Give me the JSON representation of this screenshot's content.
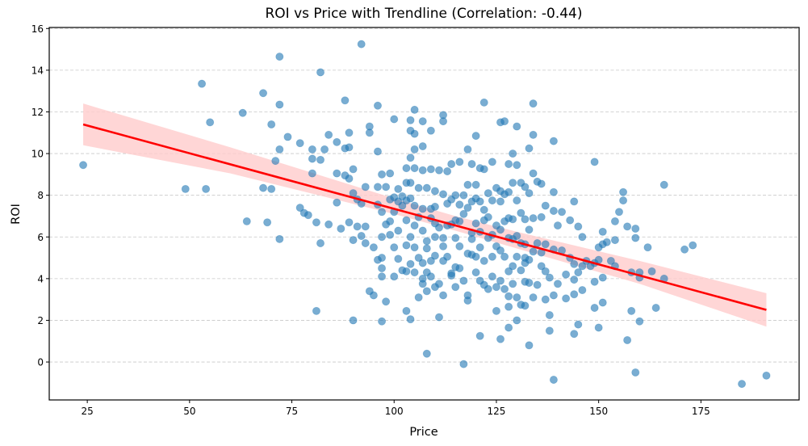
{
  "chart_data": {
    "type": "scatter",
    "title": "ROI vs Price with Trendline (Correlation: -0.44)",
    "xlabel": "Price",
    "ylabel": "ROI",
    "xlim": [
      15.7,
      199.0
    ],
    "ylim": [
      -1.82,
      16.05
    ],
    "xticks": [
      25,
      50,
      75,
      100,
      125,
      150,
      175
    ],
    "yticks": [
      0,
      2,
      4,
      6,
      8,
      10,
      12,
      14,
      16
    ],
    "grid": {
      "axis": "y",
      "style": "dashed",
      "color": "#c8c8c8"
    },
    "correlation": -0.44,
    "colors": {
      "points": "#1f77b4",
      "trendline": "#ff0000",
      "band": "#ffcccc"
    },
    "point_alpha": 0.6,
    "trendline": {
      "x": [
        24,
        191
      ],
      "y": [
        11.4,
        2.5
      ]
    },
    "confidence_band": {
      "x": [
        24,
        60,
        100,
        115,
        130,
        160,
        191
      ],
      "lower": [
        10.4,
        9.05,
        7.1,
        6.3,
        5.45,
        3.75,
        1.7
      ],
      "upper": [
        12.4,
        10.3,
        7.85,
        7.0,
        6.25,
        4.85,
        3.3
      ]
    },
    "points": [
      [
        24,
        9.45
      ],
      [
        49,
        8.3
      ],
      [
        53,
        13.35
      ],
      [
        54,
        8.3
      ],
      [
        55,
        11.5
      ],
      [
        63,
        11.95
      ],
      [
        64,
        6.75
      ],
      [
        68,
        12.9
      ],
      [
        68,
        8.35
      ],
      [
        69,
        6.7
      ],
      [
        70,
        11.4
      ],
      [
        70,
        8.3
      ],
      [
        71,
        9.65
      ],
      [
        72,
        14.65
      ],
      [
        72,
        12.35
      ],
      [
        72,
        10.2
      ],
      [
        72,
        5.9
      ],
      [
        74,
        10.8
      ],
      [
        77,
        10.5
      ],
      [
        77,
        7.4
      ],
      [
        78,
        7.15
      ],
      [
        79,
        7.05
      ],
      [
        80,
        10.2
      ],
      [
        80,
        9.75
      ],
      [
        80,
        9.05
      ],
      [
        81,
        6.7
      ],
      [
        81,
        2.45
      ],
      [
        82,
        13.9
      ],
      [
        82,
        9.7
      ],
      [
        82,
        5.7
      ],
      [
        83,
        10.2
      ],
      [
        84,
        10.9
      ],
      [
        84,
        6.6
      ],
      [
        86,
        10.55
      ],
      [
        86,
        9.05
      ],
      [
        86,
        7.65
      ],
      [
        87,
        6.4
      ],
      [
        88,
        12.55
      ],
      [
        88,
        10.25
      ],
      [
        88,
        8.95
      ],
      [
        89,
        11.0
      ],
      [
        89,
        10.3
      ],
      [
        89,
        8.8
      ],
      [
        89,
        6.7
      ],
      [
        90,
        2.0
      ],
      [
        90,
        5.85
      ],
      [
        90,
        8.1
      ],
      [
        90,
        9.25
      ],
      [
        91,
        7.8
      ],
      [
        91,
        6.5
      ],
      [
        92,
        7.6
      ],
      [
        92,
        6.05
      ],
      [
        92,
        15.25
      ],
      [
        93,
        8.4
      ],
      [
        93,
        6.5
      ],
      [
        93,
        5.7
      ],
      [
        94,
        11.3
      ],
      [
        94,
        11.0
      ],
      [
        94,
        3.4
      ],
      [
        95,
        5.5
      ],
      [
        95,
        3.2
      ],
      [
        96,
        12.3
      ],
      [
        96,
        10.1
      ],
      [
        96,
        8.4
      ],
      [
        96,
        4.9
      ],
      [
        96,
        7.55
      ],
      [
        97,
        9.0
      ],
      [
        97,
        7.2
      ],
      [
        97,
        6.0
      ],
      [
        97,
        5.0
      ],
      [
        97,
        4.5
      ],
      [
        97,
        4.1
      ],
      [
        97,
        1.95
      ],
      [
        98,
        8.4
      ],
      [
        98,
        6.6
      ],
      [
        98,
        2.9
      ],
      [
        99,
        9.05
      ],
      [
        99,
        7.8
      ],
      [
        99,
        6.75
      ],
      [
        99,
        6.1
      ],
      [
        100,
        11.65
      ],
      [
        100,
        7.9
      ],
      [
        100,
        7.2
      ],
      [
        100,
        5.5
      ],
      [
        100,
        4.1
      ],
      [
        101,
        8.3
      ],
      [
        101,
        7.7
      ],
      [
        101,
        6.3
      ],
      [
        101,
        4.95
      ],
      [
        102,
        7.5
      ],
      [
        102,
        4.4
      ],
      [
        102,
        7.95
      ],
      [
        103,
        9.3
      ],
      [
        103,
        8.6
      ],
      [
        103,
        7.75
      ],
      [
        103,
        6.8
      ],
      [
        103,
        5.6
      ],
      [
        103,
        4.35
      ],
      [
        103,
        2.45
      ],
      [
        104,
        11.6
      ],
      [
        104,
        11.1
      ],
      [
        104,
        9.8
      ],
      [
        104,
        8.6
      ],
      [
        104,
        7.85
      ],
      [
        104,
        6.0
      ],
      [
        104,
        4.7
      ],
      [
        104,
        2.05
      ],
      [
        105,
        12.1
      ],
      [
        105,
        10.95
      ],
      [
        105,
        10.2
      ],
      [
        105,
        9.3
      ],
      [
        105,
        7.5
      ],
      [
        105,
        6.55
      ],
      [
        105,
        5.5
      ],
      [
        105,
        4.3
      ],
      [
        106,
        8.35
      ],
      [
        106,
        6.95
      ],
      [
        106,
        5.0
      ],
      [
        106,
        3.1
      ],
      [
        107,
        11.55
      ],
      [
        107,
        10.35
      ],
      [
        107,
        9.2
      ],
      [
        107,
        7.35
      ],
      [
        107,
        6.3
      ],
      [
        107,
        4.75
      ],
      [
        107,
        4.0
      ],
      [
        107,
        3.75
      ],
      [
        108,
        8.35
      ],
      [
        108,
        5.8
      ],
      [
        108,
        5.45
      ],
      [
        108,
        4.3
      ],
      [
        108,
        3.4
      ],
      [
        108,
        0.4
      ],
      [
        109,
        9.25
      ],
      [
        109,
        11.1
      ],
      [
        109,
        7.35
      ],
      [
        109,
        6.9
      ],
      [
        109,
        4.85
      ],
      [
        109,
        4.1
      ],
      [
        110,
        8.2
      ],
      [
        110,
        6.0
      ],
      [
        110,
        5.1
      ],
      [
        110,
        3.6
      ],
      [
        110,
        7.45
      ],
      [
        110,
        6.65
      ],
      [
        111,
        9.2
      ],
      [
        111,
        6.45
      ],
      [
        111,
        3.75
      ],
      [
        111,
        2.15
      ],
      [
        112,
        11.55
      ],
      [
        112,
        11.85
      ],
      [
        112,
        8.05
      ],
      [
        112,
        5.95
      ],
      [
        112,
        5.55
      ],
      [
        112,
        4.85
      ],
      [
        112,
        3.2
      ],
      [
        113,
        9.15
      ],
      [
        113,
        7.6
      ],
      [
        113,
        6.55
      ],
      [
        113,
        5.05
      ],
      [
        114,
        9.5
      ],
      [
        114,
        7.8
      ],
      [
        114,
        6.6
      ],
      [
        114,
        4.25
      ],
      [
        114,
        4.15
      ],
      [
        115,
        8.0
      ],
      [
        115,
        6.8
      ],
      [
        115,
        5.95
      ],
      [
        115,
        4.55
      ],
      [
        115,
        3.6
      ],
      [
        116,
        9.6
      ],
      [
        116,
        7.55
      ],
      [
        116,
        6.75
      ],
      [
        116,
        5.55
      ],
      [
        116,
        4.5
      ],
      [
        117,
        8.0
      ],
      [
        117,
        7.1
      ],
      [
        117,
        3.9
      ],
      [
        117,
        -0.1
      ],
      [
        118,
        10.2
      ],
      [
        118,
        8.5
      ],
      [
        118,
        7.4
      ],
      [
        118,
        5.2
      ],
      [
        118,
        3.2
      ],
      [
        118,
        2.95
      ],
      [
        119,
        9.5
      ],
      [
        119,
        7.7
      ],
      [
        119,
        6.2
      ],
      [
        119,
        5.9
      ],
      [
        119,
        5.15
      ],
      [
        120,
        10.85
      ],
      [
        120,
        8.5
      ],
      [
        120,
        7.85
      ],
      [
        120,
        6.65
      ],
      [
        120,
        5.05
      ],
      [
        120,
        4.3
      ],
      [
        121,
        9.3
      ],
      [
        121,
        7.7
      ],
      [
        121,
        6.25
      ],
      [
        121,
        5.5
      ],
      [
        121,
        3.9
      ],
      [
        121,
        1.25
      ],
      [
        122,
        12.45
      ],
      [
        122,
        9.25
      ],
      [
        122,
        7.3
      ],
      [
        122,
        6.8
      ],
      [
        122,
        4.85
      ],
      [
        122,
        3.7
      ],
      [
        123,
        8.1
      ],
      [
        123,
        6.95
      ],
      [
        123,
        5.95
      ],
      [
        123,
        3.5
      ],
      [
        124,
        9.6
      ],
      [
        124,
        7.75
      ],
      [
        124,
        6.1
      ],
      [
        124,
        5.05
      ],
      [
        124,
        4.1
      ],
      [
        125,
        8.35
      ],
      [
        125,
        6.55
      ],
      [
        125,
        5.55
      ],
      [
        125,
        3.6
      ],
      [
        125,
        2.45
      ],
      [
        126,
        11.5
      ],
      [
        126,
        8.2
      ],
      [
        126,
        7.7
      ],
      [
        126,
        6.35
      ],
      [
        126,
        5.35
      ],
      [
        126,
        3.9
      ],
      [
        126,
        1.1
      ],
      [
        127,
        11.55
      ],
      [
        127,
        8.05
      ],
      [
        127,
        6.75
      ],
      [
        127,
        5.05
      ],
      [
        127,
        3.5
      ],
      [
        128,
        9.5
      ],
      [
        128,
        8.15
      ],
      [
        128,
        6.9
      ],
      [
        128,
        5.95
      ],
      [
        128,
        4.35
      ],
      [
        128,
        3.15
      ],
      [
        128,
        2.65
      ],
      [
        128,
        1.65
      ],
      [
        129,
        10.0
      ],
      [
        129,
        8.6
      ],
      [
        129,
        6.85
      ],
      [
        129,
        5.9
      ],
      [
        129,
        4.6
      ],
      [
        129,
        3.75
      ],
      [
        130,
        11.3
      ],
      [
        130,
        9.45
      ],
      [
        130,
        7.75
      ],
      [
        130,
        6.05
      ],
      [
        130,
        5.05
      ],
      [
        130,
        3.1
      ],
      [
        130,
        2.0
      ],
      [
        131,
        8.6
      ],
      [
        131,
        7.15
      ],
      [
        131,
        5.7
      ],
      [
        131,
        4.4
      ],
      [
        131,
        2.75
      ],
      [
        132,
        8.4
      ],
      [
        132,
        6.85
      ],
      [
        132,
        5.65
      ],
      [
        132,
        5.0
      ],
      [
        132,
        4.75
      ],
      [
        132,
        3.85
      ],
      [
        132,
        2.7
      ],
      [
        133,
        10.25
      ],
      [
        133,
        8.1
      ],
      [
        133,
        6.35
      ],
      [
        133,
        4.9
      ],
      [
        133,
        3.8
      ],
      [
        133,
        0.8
      ],
      [
        134,
        12.4
      ],
      [
        134,
        10.9
      ],
      [
        134,
        9.05
      ],
      [
        134,
        6.9
      ],
      [
        134,
        5.3
      ],
      [
        134,
        3.1
      ],
      [
        135,
        8.65
      ],
      [
        135,
        5.7
      ],
      [
        135,
        3.7
      ],
      [
        136,
        8.55
      ],
      [
        136,
        6.95
      ],
      [
        136,
        5.25
      ],
      [
        136,
        4.6
      ],
      [
        137,
        7.5
      ],
      [
        137,
        5.65
      ],
      [
        137,
        4.35
      ],
      [
        137,
        3.0
      ],
      [
        138,
        4.05
      ],
      [
        138,
        2.25
      ],
      [
        138,
        1.5
      ],
      [
        139,
        10.6
      ],
      [
        139,
        8.15
      ],
      [
        139,
        7.25
      ],
      [
        139,
        5.4
      ],
      [
        139,
        3.2
      ],
      [
        139,
        -0.85
      ],
      [
        140,
        6.55
      ],
      [
        140,
        3.75
      ],
      [
        141,
        7.2
      ],
      [
        141,
        5.35
      ],
      [
        142,
        4.2
      ],
      [
        142,
        3.05
      ],
      [
        143,
        6.8
      ],
      [
        143,
        5.0
      ],
      [
        144,
        7.7
      ],
      [
        144,
        4.7
      ],
      [
        144,
        3.95
      ],
      [
        144,
        3.25
      ],
      [
        144,
        1.35
      ],
      [
        145,
        6.5
      ],
      [
        145,
        4.3
      ],
      [
        145,
        1.8
      ],
      [
        146,
        6.0
      ],
      [
        146,
        4.6
      ],
      [
        146,
        3.45
      ],
      [
        147,
        4.85
      ],
      [
        148,
        4.6
      ],
      [
        149,
        9.6
      ],
      [
        149,
        4.75
      ],
      [
        149,
        3.85
      ],
      [
        149,
        2.6
      ],
      [
        150,
        5.5
      ],
      [
        150,
        4.9
      ],
      [
        150,
        1.65
      ],
      [
        151,
        6.25
      ],
      [
        151,
        5.65
      ],
      [
        151,
        4.05
      ],
      [
        151,
        2.85
      ],
      [
        152,
        5.75
      ],
      [
        153,
        4.85
      ],
      [
        154,
        6.75
      ],
      [
        154,
        5.85
      ],
      [
        154,
        4.6
      ],
      [
        155,
        7.2
      ],
      [
        156,
        8.15
      ],
      [
        156,
        7.75
      ],
      [
        157,
        6.5
      ],
      [
        157,
        1.05
      ],
      [
        158,
        4.3
      ],
      [
        158,
        2.45
      ],
      [
        159,
        6.4
      ],
      [
        159,
        5.95
      ],
      [
        159,
        -0.5
      ],
      [
        160,
        4.3
      ],
      [
        160,
        4.05
      ],
      [
        160,
        1.95
      ],
      [
        162,
        5.5
      ],
      [
        163,
        4.35
      ],
      [
        164,
        2.6
      ],
      [
        166,
        8.5
      ],
      [
        166,
        4.0
      ],
      [
        171,
        5.4
      ],
      [
        173,
        5.6
      ],
      [
        185,
        -1.05
      ],
      [
        191,
        -0.65
      ]
    ]
  }
}
